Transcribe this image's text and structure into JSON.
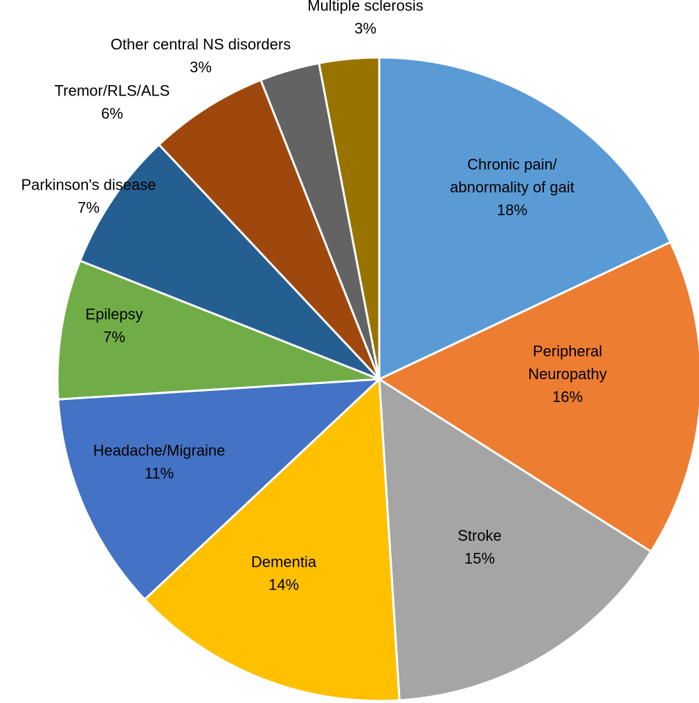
{
  "chart_data": {
    "type": "pie",
    "title": "",
    "start_angle_deg": 0,
    "direction": "clockwise",
    "slices": [
      {
        "name": "Chronic pain/ abnormality of gait",
        "label_lines": [
          "Chronic pain/",
          "abnormality of gait"
        ],
        "value": 18,
        "percent_label": "18%",
        "color": "#5B9BD5"
      },
      {
        "name": "Peripheral Neuropathy",
        "label_lines": [
          "Peripheral",
          "Neuropathy"
        ],
        "value": 16,
        "percent_label": "16%",
        "color": "#ED7D31"
      },
      {
        "name": "Stroke",
        "label_lines": [
          "Stroke"
        ],
        "value": 15,
        "percent_label": "15%",
        "color": "#A5A5A5"
      },
      {
        "name": "Dementia",
        "label_lines": [
          "Dementia"
        ],
        "value": 14,
        "percent_label": "14%",
        "color": "#FFC000"
      },
      {
        "name": "Headache/Migraine",
        "label_lines": [
          "Headache/Migraine"
        ],
        "value": 11,
        "percent_label": "11%",
        "color": "#4472C4"
      },
      {
        "name": "Epilepsy",
        "label_lines": [
          "Epilepsy"
        ],
        "value": 7,
        "percent_label": "7%",
        "color": "#70AD47"
      },
      {
        "name": "Parkinson's disease",
        "label_lines": [
          "Parkinson's disease"
        ],
        "value": 7,
        "percent_label": "7%",
        "color": "#255E91"
      },
      {
        "name": "Tremor/RLS/ALS",
        "label_lines": [
          "Tremor/RLS/ALS"
        ],
        "value": 6,
        "percent_label": "6%",
        "color": "#9E480E"
      },
      {
        "name": "Other central NS disorders",
        "label_lines": [
          "Other central NS disorders"
        ],
        "value": 3,
        "percent_label": "3%",
        "color": "#636363"
      },
      {
        "name": "Multiple sclerosis",
        "label_lines": [
          "Multiple sclerosis"
        ],
        "value": 3,
        "percent_label": "3%",
        "color": "#997300"
      }
    ]
  }
}
